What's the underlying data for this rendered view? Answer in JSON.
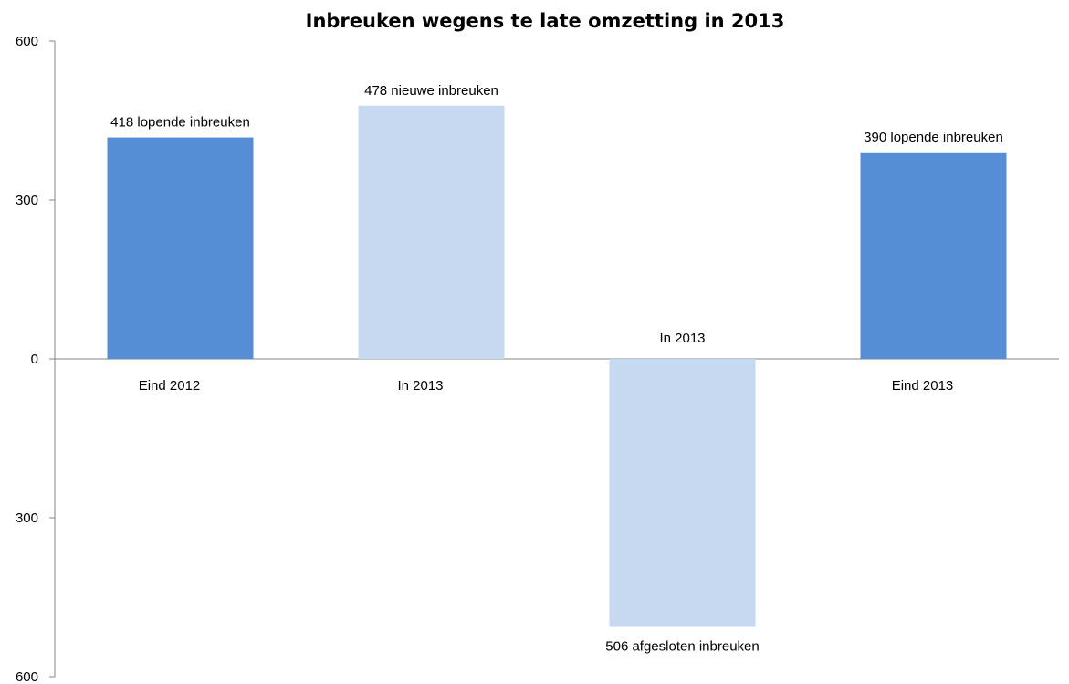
{
  "chart_data": {
    "type": "bar",
    "title": "Inbreuken wegens te late omzetting in 2013",
    "xlabel": "",
    "ylabel": "",
    "ylim": [
      -600,
      600
    ],
    "yticks": [
      600,
      300,
      0,
      -300,
      -600
    ],
    "ytick_labels": [
      "600",
      "300",
      "0",
      "300",
      "600"
    ],
    "grid": false,
    "legend": "none",
    "colors": {
      "dark": "#558ED5",
      "light": "#C6D9F1",
      "axis": "#868686"
    },
    "bars": [
      {
        "category": "Eind 2012",
        "value": 418,
        "label": "418 lopende inbreuken",
        "color": "#558ED5"
      },
      {
        "category": "In 2013",
        "value": 478,
        "label": "478 nieuwe inbreuken",
        "color": "#C6D9F1"
      },
      {
        "category": "In 2013",
        "value": -506,
        "label": "506 afgesloten inbreuken",
        "color": "#C6D9F1"
      },
      {
        "category": "Eind 2013",
        "value": 390,
        "label": "390 lopende inbreuken",
        "color": "#558ED5"
      }
    ]
  }
}
